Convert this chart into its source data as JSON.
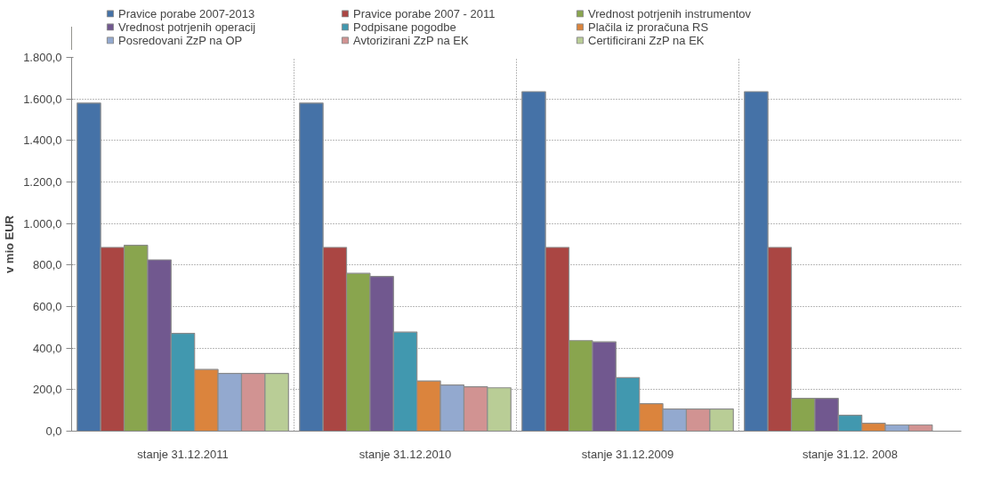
{
  "chart_data": {
    "type": "bar",
    "ylabel": "v mio EUR",
    "categories": [
      "stanje 31.12.2011",
      "stanje 31.12.2010",
      "stanje 31.12.2009",
      "stanje 31.12. 2008"
    ],
    "series": [
      {
        "name": "Pravice porabe 2007-2013",
        "color": "#4572a7",
        "values": [
          1580,
          1580,
          1635,
          1635
        ]
      },
      {
        "name": "Pravice porabe 2007 - 2011",
        "color": "#aa4643",
        "values": [
          885,
          885,
          885,
          885
        ]
      },
      {
        "name": "Vrednost potrjenih instrumentov",
        "color": "#89a54e",
        "values": [
          895,
          760,
          436,
          158
        ]
      },
      {
        "name": "Vrednost potrjenih operacij",
        "color": "#71588f",
        "values": [
          825,
          745,
          430,
          158
        ]
      },
      {
        "name": "Podpisane pogodbe",
        "color": "#4198af",
        "values": [
          471,
          477,
          258,
          77
        ]
      },
      {
        "name": "Plačila iz proračuna RS",
        "color": "#db843d",
        "values": [
          297,
          242,
          132,
          38
        ]
      },
      {
        "name": "Posredovani ZzP na OP",
        "color": "#93a9cf",
        "values": [
          278,
          222,
          107,
          30
        ]
      },
      {
        "name": "Avtorizirani ZzP na EK",
        "color": "#d19392",
        "values": [
          278,
          214,
          107,
          30
        ]
      },
      {
        "name": "Certificirani ZzP na EK",
        "color": "#b9cd96",
        "values": [
          278,
          209,
          107,
          null
        ]
      }
    ],
    "ylim": [
      0,
      1800
    ],
    "yticks": [
      {
        "value": 0,
        "label": "0,0"
      },
      {
        "value": 200,
        "label": "200,0"
      },
      {
        "value": 400,
        "label": "400,0"
      },
      {
        "value": 600,
        "label": "600,0"
      },
      {
        "value": 800,
        "label": "800,0"
      },
      {
        "value": 1000,
        "label": "1.000,0"
      },
      {
        "value": 1200,
        "label": "1.200,0"
      },
      {
        "value": 1400,
        "label": "1.400,0"
      },
      {
        "value": 1600,
        "label": "1.600,0"
      },
      {
        "value": 1800,
        "label": "1.800,0"
      }
    ],
    "grid": true,
    "legend": "top"
  }
}
